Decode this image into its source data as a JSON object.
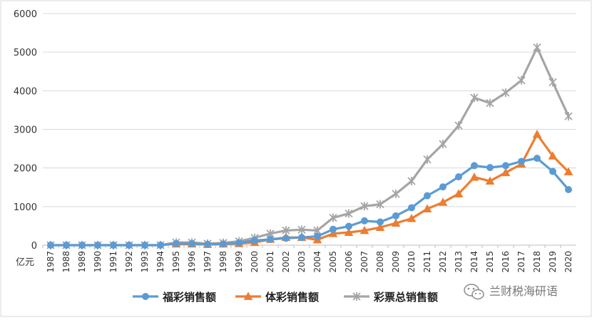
{
  "chart_data": {
    "type": "line",
    "x": [
      "1987",
      "1988",
      "1989",
      "1990",
      "1991",
      "1992",
      "1993",
      "1994",
      "1995",
      "1996",
      "1997",
      "1998",
      "1999",
      "2000",
      "2001",
      "2002",
      "2003",
      "2004",
      "2005",
      "2006",
      "2007",
      "2008",
      "2009",
      "2010",
      "2011",
      "2012",
      "2013",
      "2014",
      "2015",
      "2016",
      "2017",
      "2018",
      "2019",
      "2020"
    ],
    "unit_label": "亿元",
    "ylim": [
      0,
      6000
    ],
    "yticks": [
      0,
      1000,
      2000,
      3000,
      4000,
      5000,
      6000
    ],
    "grid": true,
    "legend_position": "bottom",
    "series": [
      {
        "name": "福彩销售额",
        "color": "#5b9bd5",
        "marker": "circle",
        "values": [
          0,
          0,
          0,
          0,
          0,
          0,
          0,
          0,
          40,
          40,
          20,
          30,
          60,
          120,
          150,
          180,
          200,
          230,
          410,
          490,
          630,
          600,
          760,
          970,
          1280,
          1510,
          1770,
          2060,
          2010,
          2060,
          2170,
          2250,
          1910,
          1440
        ]
      },
      {
        "name": "体彩销售额",
        "color": "#ed7d31",
        "marker": "triangle",
        "values": [
          null,
          null,
          null,
          null,
          null,
          null,
          null,
          null,
          30,
          30,
          20,
          30,
          40,
          70,
          150,
          200,
          200,
          140,
          300,
          330,
          380,
          460,
          570,
          690,
          940,
          1110,
          1330,
          1760,
          1660,
          1880,
          2100,
          2870,
          2310,
          1900
        ]
      },
      {
        "name": "彩票总销售额",
        "color": "#a5a5a5",
        "marker": "star",
        "values": [
          0,
          0,
          0,
          0,
          0,
          0,
          0,
          0,
          70,
          70,
          40,
          60,
          100,
          190,
          300,
          380,
          400,
          380,
          710,
          820,
          1010,
          1060,
          1330,
          1660,
          2220,
          2620,
          3100,
          3820,
          3680,
          3950,
          4270,
          5120,
          4220,
          3340
        ]
      }
    ]
  },
  "watermark": {
    "text": "兰财税海研语",
    "icon": "wechat-icon"
  }
}
